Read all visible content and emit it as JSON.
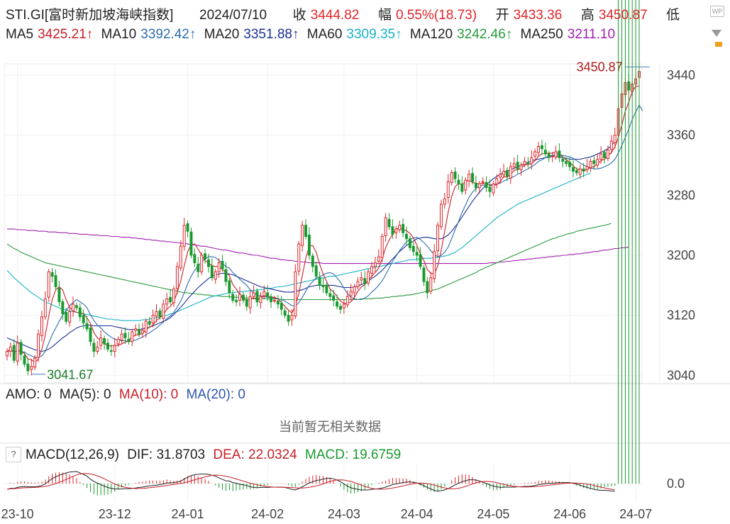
{
  "header": {
    "symbol": "STI.GI[富时新加坡海峡指数]",
    "date": "2024/07/10",
    "close_label": "收",
    "close_value": "3444.82",
    "change_label": "幅",
    "change_value": "0.55%(18.73)",
    "open_label": "开",
    "open_value": "3433.36",
    "high_label": "高",
    "high_value": "3450.87",
    "low_label": "低"
  },
  "ma_row": [
    {
      "label": "MA5",
      "value": "3425.21↑",
      "color": "#c8202a"
    },
    {
      "label": "MA10",
      "value": "3392.42↑",
      "color": "#2f6db0"
    },
    {
      "label": "MA20",
      "value": "3351.88↑",
      "color": "#1b2f96"
    },
    {
      "label": "MA60",
      "value": "3309.35↑",
      "color": "#18b2c8"
    },
    {
      "label": "MA120",
      "value": "3242.46↑",
      "color": "#2a9a3c"
    },
    {
      "label": "MA250",
      "value": "3211.10",
      "color": "#a020b0"
    }
  ],
  "icons": {
    "top_right": "wp-badge-icon",
    "second_right": "dropdown-arrow-icon",
    "lock": "lock-icon"
  },
  "amo": {
    "label": "AMO: 0",
    "ma5": "MA(5): 0",
    "ma10": "MA(10): 0",
    "ma20": "MA(20): 0",
    "no_data": "当前暂无相关数据"
  },
  "macd": {
    "help": "?",
    "title": "MACD(12,26,9)",
    "dif": "DIF: 31.8703",
    "dea": "DEA: 22.0324",
    "macd": "MACD: 19.6759"
  },
  "colors": {
    "up": "#e0252a",
    "down": "#1a9a2e",
    "ma5": "#c8202a",
    "ma10": "#2f6db0",
    "ma20": "#1b2f96",
    "ma60": "#18b2c8",
    "ma120": "#2a9a3c",
    "ma250": "#a020b0"
  },
  "chart_data": {
    "type": "line",
    "description_source": "candlestick price chart with moving averages",
    "y_ticks": [
      3440,
      3360,
      3280,
      3200,
      3120,
      3040
    ],
    "ylim": [
      3030,
      3455
    ],
    "x_ticks": [
      "23-10",
      "23-12",
      "24-01",
      "24-02",
      "24-03",
      "24-04",
      "24-05",
      "24-06",
      "24-07"
    ],
    "x_tick_index": [
      3,
      31,
      52,
      75,
      97,
      118,
      140,
      162,
      181
    ],
    "high_annotation": "3450.87",
    "low_annotation": "3041.67",
    "high_value": 3450.87,
    "low_value": 3041.67,
    "high_index": 185,
    "low_index": 7,
    "close": [
      3072,
      3078,
      3060,
      3083,
      3068,
      3055,
      3046,
      3052,
      3063,
      3095,
      3118,
      3142,
      3178,
      3172,
      3158,
      3138,
      3122,
      3112,
      3125,
      3135,
      3130,
      3118,
      3110,
      3102,
      3085,
      3072,
      3078,
      3090,
      3082,
      3075,
      3072,
      3080,
      3088,
      3095,
      3090,
      3085,
      3098,
      3102,
      3095,
      3100,
      3112,
      3108,
      3120,
      3125,
      3118,
      3135,
      3142,
      3138,
      3155,
      3185,
      3212,
      3240,
      3232,
      3200,
      3190,
      3178,
      3200,
      3195,
      3185,
      3170,
      3178,
      3190,
      3182,
      3165,
      3150,
      3140,
      3138,
      3148,
      3140,
      3132,
      3145,
      3150,
      3138,
      3145,
      3152,
      3145,
      3138,
      3140,
      3135,
      3128,
      3120,
      3112,
      3120,
      3178,
      3215,
      3240,
      3225,
      3200,
      3185,
      3172,
      3160,
      3158,
      3150,
      3145,
      3140,
      3132,
      3128,
      3135,
      3145,
      3152,
      3158,
      3165,
      3170,
      3162,
      3178,
      3185,
      3190,
      3198,
      3225,
      3250,
      3238,
      3228,
      3235,
      3240,
      3230,
      3222,
      3210,
      3205,
      3200,
      3185,
      3165,
      3150,
      3170,
      3205,
      3240,
      3268,
      3275,
      3298,
      3310,
      3302,
      3295,
      3285,
      3300,
      3308,
      3298,
      3290,
      3295,
      3298,
      3290,
      3285,
      3295,
      3302,
      3308,
      3312,
      3305,
      3318,
      3322,
      3315,
      3320,
      3325,
      3322,
      3330,
      3338,
      3345,
      3342,
      3335,
      3330,
      3332,
      3338,
      3330,
      3325,
      3322,
      3318,
      3312,
      3310,
      3315,
      3312,
      3318,
      3325,
      3322,
      3328,
      3335,
      3330,
      3340,
      3352,
      3360,
      3395,
      3415,
      3430,
      3420,
      3428,
      3435,
      3444.82
    ],
    "ma5": [
      3072,
      3075,
      3071,
      3073,
      3072,
      3069,
      3062,
      3061,
      3057,
      3062,
      3075,
      3094,
      3119,
      3141,
      3154,
      3158,
      3154,
      3141,
      3131,
      3126,
      3124,
      3124,
      3122,
      3117,
      3109,
      3097,
      3090,
      3086,
      3082,
      3080,
      3079,
      3080,
      3080,
      3082,
      3084,
      3087,
      3091,
      3094,
      3094,
      3096,
      3101,
      3104,
      3107,
      3113,
      3117,
      3121,
      3128,
      3132,
      3138,
      3151,
      3166,
      3186,
      3205,
      3214,
      3215,
      3208,
      3200,
      3193,
      3190,
      3186,
      3185,
      3185,
      3181,
      3177,
      3173,
      3161,
      3155,
      3148,
      3143,
      3140,
      3141,
      3143,
      3141,
      3142,
      3146,
      3146,
      3144,
      3144,
      3142,
      3137,
      3132,
      3127,
      3123,
      3132,
      3149,
      3173,
      3196,
      3212,
      3213,
      3204,
      3188,
      3175,
      3165,
      3155,
      3151,
      3145,
      3139,
      3136,
      3136,
      3138,
      3144,
      3152,
      3158,
      3161,
      3167,
      3172,
      3177,
      3183,
      3195,
      3210,
      3220,
      3228,
      3235,
      3236,
      3234,
      3233,
      3229,
      3223,
      3213,
      3202,
      3193,
      3181,
      3176,
      3175,
      3186,
      3207,
      3232,
      3257,
      3278,
      3291,
      3296,
      3294,
      3298,
      3300,
      3297,
      3296,
      3295,
      3296,
      3295,
      3293,
      3293,
      3294,
      3298,
      3305,
      3304,
      3308,
      3313,
      3314,
      3316,
      3320,
      3321,
      3322,
      3326,
      3332,
      3335,
      3336,
      3336,
      3336,
      3337,
      3335,
      3331,
      3327,
      3324,
      3319,
      3315,
      3314,
      3313,
      3314,
      3317,
      3318,
      3322,
      3326,
      3328,
      3332,
      3337,
      3344,
      3357,
      3373,
      3392,
      3404,
      3418,
      3425,
      3425.21
    ],
    "ma10": [
      3072,
      3073,
      3071,
      3072,
      3072,
      3071,
      3068,
      3066,
      3064,
      3064,
      3066,
      3072,
      3083,
      3094,
      3103,
      3112,
      3120,
      3126,
      3133,
      3137,
      3141,
      3138,
      3135,
      3130,
      3121,
      3113,
      3107,
      3103,
      3098,
      3094,
      3091,
      3088,
      3087,
      3086,
      3086,
      3085,
      3086,
      3087,
      3089,
      3091,
      3094,
      3097,
      3100,
      3103,
      3107,
      3111,
      3116,
      3119,
      3124,
      3131,
      3139,
      3150,
      3162,
      3172,
      3180,
      3186,
      3191,
      3195,
      3198,
      3198,
      3197,
      3193,
      3189,
      3185,
      3183,
      3177,
      3173,
      3168,
      3164,
      3160,
      3154,
      3150,
      3147,
      3146,
      3145,
      3144,
      3144,
      3143,
      3142,
      3141,
      3139,
      3136,
      3133,
      3132,
      3137,
      3144,
      3152,
      3160,
      3165,
      3170,
      3171,
      3174,
      3176,
      3177,
      3175,
      3170,
      3164,
      3156,
      3149,
      3144,
      3142,
      3141,
      3141,
      3143,
      3146,
      3151,
      3155,
      3160,
      3166,
      3174,
      3183,
      3192,
      3199,
      3206,
      3212,
      3218,
      3221,
      3223,
      3224,
      3221,
      3217,
      3212,
      3206,
      3201,
      3198,
      3200,
      3204,
      3211,
      3222,
      3234,
      3245,
      3257,
      3267,
      3277,
      3284,
      3289,
      3292,
      3293,
      3294,
      3294,
      3294,
      3295,
      3296,
      3299,
      3301,
      3303,
      3305,
      3308,
      3310,
      3313,
      3315,
      3318,
      3321,
      3325,
      3327,
      3330,
      3332,
      3333,
      3334,
      3334,
      3333,
      3332,
      3331,
      3329,
      3326,
      3323,
      3320,
      3318,
      3316,
      3315,
      3315,
      3316,
      3318,
      3320,
      3323,
      3328,
      3336,
      3346,
      3357,
      3368,
      3381,
      3391,
      3400,
      3392.42
    ],
    "ma20": [
      3090,
      3088,
      3086,
      3084,
      3082,
      3080,
      3078,
      3076,
      3074,
      3073,
      3072,
      3073,
      3075,
      3078,
      3082,
      3086,
      3090,
      3093,
      3097,
      3100,
      3103,
      3105,
      3106,
      3107,
      3107,
      3106,
      3106,
      3106,
      3106,
      3106,
      3106,
      3105,
      3104,
      3103,
      3102,
      3101,
      3101,
      3101,
      3101,
      3102,
      3103,
      3104,
      3106,
      3108,
      3110,
      3112,
      3114,
      3117,
      3121,
      3126,
      3131,
      3136,
      3142,
      3147,
      3152,
      3157,
      3161,
      3165,
      3169,
      3172,
      3174,
      3175,
      3176,
      3176,
      3175,
      3174,
      3172,
      3170,
      3168,
      3166,
      3164,
      3162,
      3160,
      3158,
      3157,
      3156,
      3155,
      3154,
      3153,
      3152,
      3151,
      3151,
      3151,
      3152,
      3153,
      3154,
      3156,
      3158,
      3159,
      3160,
      3160,
      3160,
      3160,
      3160,
      3160,
      3159,
      3158,
      3157,
      3157,
      3157,
      3158,
      3159,
      3161,
      3163,
      3166,
      3169,
      3172,
      3176,
      3180,
      3185,
      3190,
      3195,
      3200,
      3205,
      3209,
      3213,
      3216,
      3219,
      3222,
      3223,
      3224,
      3224,
      3223,
      3222,
      3222,
      3222,
      3224,
      3227,
      3232,
      3238,
      3244,
      3251,
      3258,
      3265,
      3272,
      3278,
      3284,
      3289,
      3294,
      3298,
      3302,
      3305,
      3308,
      3310,
      3312,
      3314,
      3316,
      3318,
      3320,
      3322,
      3324,
      3326,
      3327,
      3328,
      3329,
      3330,
      3331,
      3332,
      3332,
      3331,
      3330,
      3329,
      3328,
      3328,
      3328,
      3328,
      3329,
      3330,
      3331,
      3333,
      3335,
      3337,
      3339,
      3342,
      3346,
      3351.88
    ],
    "ma60": [
      3180,
      3175,
      3170,
      3166,
      3162,
      3158,
      3154,
      3150,
      3147,
      3144,
      3141,
      3138,
      3136,
      3134,
      3132,
      3130,
      3128,
      3127,
      3126,
      3125,
      3124,
      3123,
      3122,
      3121,
      3120,
      3119,
      3118,
      3117,
      3116,
      3115,
      3115,
      3114,
      3114,
      3113,
      3113,
      3113,
      3113,
      3113,
      3113,
      3114,
      3114,
      3115,
      3116,
      3117,
      3118,
      3119,
      3120,
      3122,
      3123,
      3125,
      3127,
      3129,
      3131,
      3133,
      3135,
      3137,
      3139,
      3141,
      3143,
      3145,
      3146,
      3147,
      3148,
      3149,
      3150,
      3150,
      3151,
      3151,
      3152,
      3152,
      3153,
      3153,
      3154,
      3154,
      3155,
      3156,
      3156,
      3157,
      3158,
      3158,
      3159,
      3160,
      3161,
      3162,
      3163,
      3164,
      3165,
      3166,
      3167,
      3168,
      3169,
      3170,
      3171,
      3172,
      3172,
      3173,
      3174,
      3175,
      3176,
      3177,
      3178,
      3179,
      3180,
      3181,
      3182,
      3183,
      3184,
      3185,
      3186,
      3187,
      3188,
      3189,
      3190,
      3191,
      3192,
      3193,
      3194,
      3194,
      3195,
      3195,
      3196,
      3196,
      3196,
      3197,
      3197,
      3198,
      3199,
      3200,
      3202,
      3204,
      3207,
      3210,
      3214,
      3218,
      3222,
      3226,
      3230,
      3234,
      3238,
      3242,
      3246,
      3250,
      3253,
      3256,
      3259,
      3262,
      3265,
      3268,
      3270,
      3272,
      3274,
      3276,
      3278,
      3280,
      3282,
      3284,
      3286,
      3288,
      3290,
      3292,
      3294,
      3296,
      3298,
      3300,
      3302,
      3304,
      3306,
      3308,
      3309.35
    ],
    "ma120": [
      3215,
      3212,
      3209,
      3207,
      3204,
      3202,
      3200,
      3198,
      3196,
      3194,
      3192,
      3190,
      3189,
      3188,
      3187,
      3186,
      3185,
      3184,
      3183,
      3182,
      3181,
      3180,
      3179,
      3178,
      3177,
      3176,
      3175,
      3174,
      3173,
      3172,
      3171,
      3170,
      3169,
      3168,
      3167,
      3166,
      3165,
      3164,
      3163,
      3162,
      3161,
      3160,
      3159,
      3158,
      3157,
      3156,
      3155,
      3154,
      3153,
      3152,
      3151,
      3150,
      3150,
      3149,
      3149,
      3148,
      3148,
      3147,
      3147,
      3146,
      3146,
      3146,
      3145,
      3145,
      3145,
      3144,
      3144,
      3144,
      3144,
      3143,
      3143,
      3143,
      3143,
      3142,
      3142,
      3142,
      3142,
      3142,
      3142,
      3141,
      3141,
      3141,
      3141,
      3141,
      3141,
      3141,
      3141,
      3141,
      3141,
      3141,
      3141,
      3141,
      3141,
      3141,
      3141,
      3141,
      3141,
      3141,
      3141,
      3141,
      3141,
      3141,
      3142,
      3142,
      3142,
      3142,
      3143,
      3143,
      3143,
      3144,
      3144,
      3145,
      3145,
      3146,
      3146,
      3147,
      3147,
      3148,
      3149,
      3150,
      3151,
      3152,
      3153,
      3154,
      3155,
      3157,
      3159,
      3161,
      3163,
      3165,
      3167,
      3169,
      3171,
      3173,
      3175,
      3177,
      3180,
      3182,
      3184,
      3186,
      3188,
      3190,
      3192,
      3194,
      3196,
      3198,
      3200,
      3202,
      3204,
      3206,
      3208,
      3210,
      3212,
      3214,
      3216,
      3218,
      3220,
      3222,
      3223,
      3225,
      3226,
      3228,
      3229,
      3230,
      3232,
      3233,
      3234,
      3235,
      3236,
      3237,
      3238,
      3239,
      3240,
      3241,
      3242.46
    ],
    "ma250": [
      3235,
      3235,
      3235,
      3234,
      3234,
      3234,
      3233,
      3233,
      3233,
      3232,
      3232,
      3232,
      3231,
      3231,
      3231,
      3230,
      3230,
      3230,
      3229,
      3229,
      3229,
      3228,
      3228,
      3228,
      3227,
      3227,
      3227,
      3226,
      3226,
      3226,
      3225,
      3225,
      3225,
      3224,
      3224,
      3224,
      3223,
      3223,
      3222,
      3222,
      3221,
      3221,
      3220,
      3220,
      3219,
      3219,
      3218,
      3218,
      3217,
      3217,
      3216,
      3216,
      3215,
      3214,
      3214,
      3213,
      3212,
      3212,
      3211,
      3210,
      3209,
      3208,
      3207,
      3207,
      3206,
      3205,
      3204,
      3203,
      3203,
      3202,
      3201,
      3200,
      3200,
      3199,
      3198,
      3197,
      3196,
      3196,
      3195,
      3194,
      3194,
      3193,
      3193,
      3192,
      3192,
      3191,
      3191,
      3190,
      3190,
      3190,
      3190,
      3189,
      3189,
      3189,
      3189,
      3189,
      3189,
      3189,
      3189,
      3189,
      3189,
      3189,
      3189,
      3189,
      3189,
      3189,
      3189,
      3189,
      3189,
      3189,
      3189,
      3189,
      3189,
      3189,
      3189,
      3189,
      3189,
      3189,
      3189,
      3189,
      3189,
      3189,
      3189,
      3189,
      3189,
      3189,
      3189,
      3189,
      3189,
      3189,
      3189,
      3189,
      3189,
      3189,
      3189,
      3189,
      3189,
      3189,
      3189,
      3190,
      3190,
      3190,
      3191,
      3191,
      3192,
      3192,
      3193,
      3193,
      3194,
      3194,
      3195,
      3195,
      3196,
      3196,
      3197,
      3197,
      3198,
      3198,
      3199,
      3199,
      3200,
      3200,
      3201,
      3201,
      3202,
      3202,
      3203,
      3203,
      3204,
      3205,
      3205,
      3206,
      3207,
      3207,
      3208,
      3209,
      3209,
      3210,
      3210,
      3211.1
    ]
  }
}
